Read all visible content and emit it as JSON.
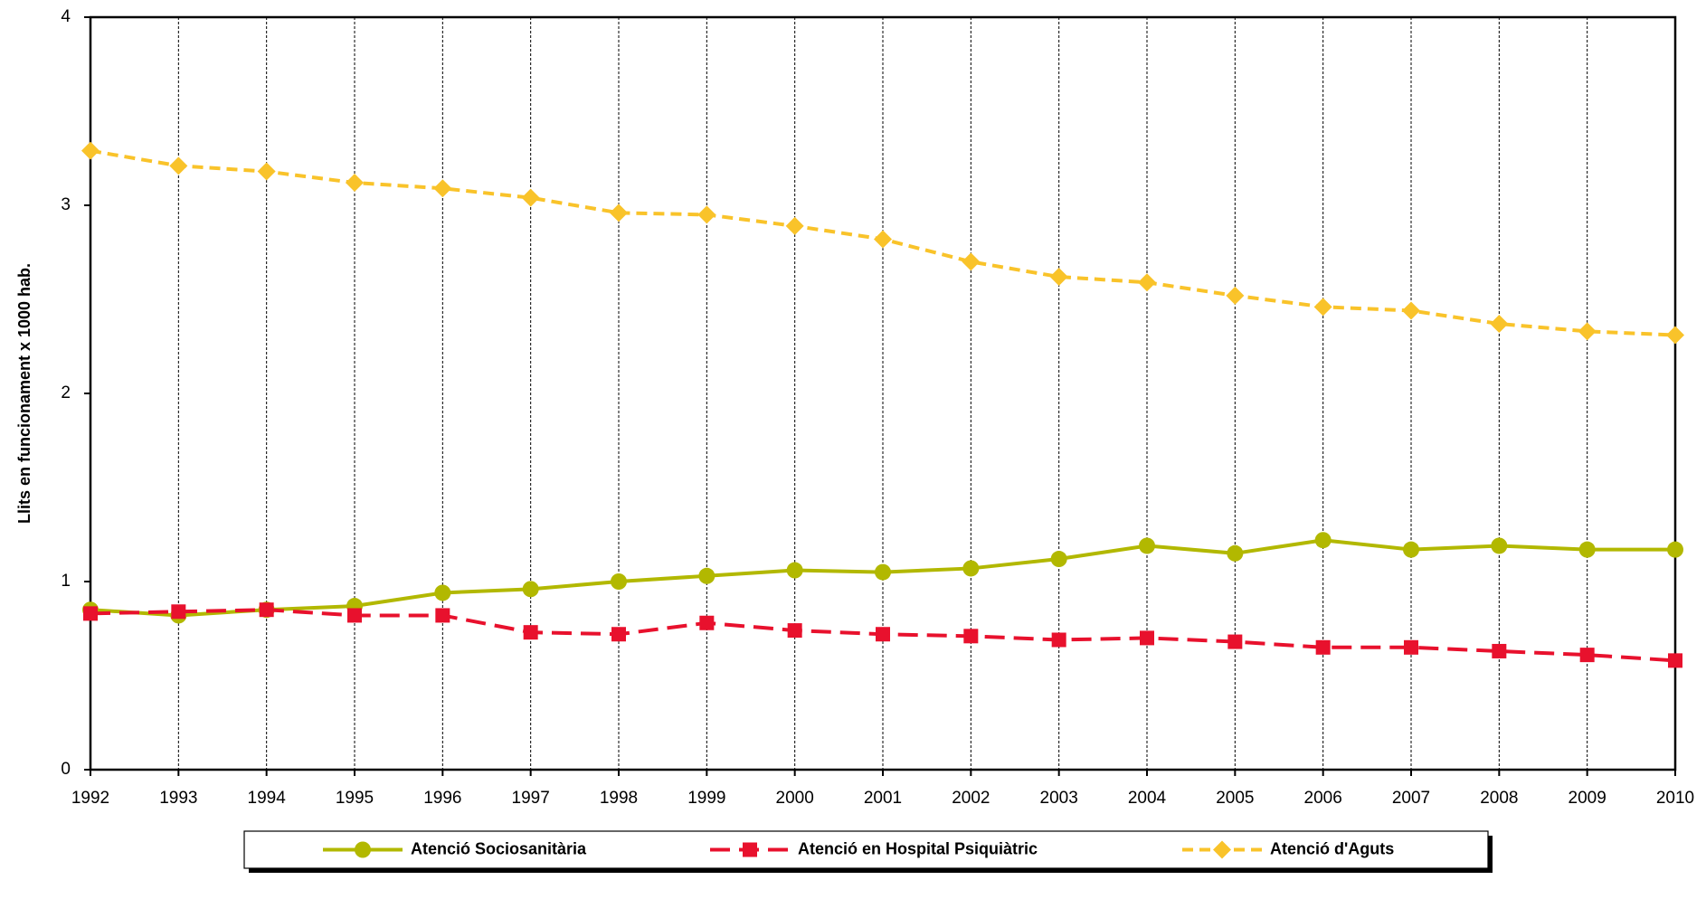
{
  "chart_data": {
    "type": "line",
    "y_label": "Llits en funcionament  x 1000 hab.",
    "x": [
      1992,
      1993,
      1994,
      1995,
      1996,
      1997,
      1998,
      1999,
      2000,
      2001,
      2002,
      2003,
      2004,
      2005,
      2006,
      2007,
      2008,
      2009,
      2010
    ],
    "xlim": [
      1992,
      2010
    ],
    "xticks": [
      1992,
      1993,
      1994,
      1995,
      1996,
      1997,
      1998,
      1999,
      2000,
      2001,
      2002,
      2003,
      2004,
      2005,
      2006,
      2007,
      2008,
      2009,
      2010
    ],
    "ylim": [
      0,
      4
    ],
    "yticks": [
      0,
      1,
      2,
      3,
      4
    ],
    "grid": true,
    "legend": "bottom",
    "series": [
      {
        "name": "Atenció Sociosanitària",
        "color": "#b2b800",
        "dash": "solid",
        "marker": "circle",
        "values": [
          0.85,
          0.82,
          0.85,
          0.87,
          0.94,
          0.96,
          1.0,
          1.03,
          1.06,
          1.05,
          1.07,
          1.12,
          1.19,
          1.15,
          1.22,
          1.17,
          1.19,
          1.17,
          1.17
        ]
      },
      {
        "name": "Atenció en Hospital  Psiquiàtric",
        "color": "#e8112d",
        "dash": "long",
        "marker": "square",
        "values": [
          0.83,
          0.84,
          0.85,
          0.82,
          0.82,
          0.73,
          0.72,
          0.78,
          0.74,
          0.72,
          0.71,
          0.69,
          0.7,
          0.68,
          0.65,
          0.65,
          0.63,
          0.61,
          0.58
        ]
      },
      {
        "name": "Atenció d'Aguts",
        "color": "#f9c32a",
        "dash": "short",
        "marker": "diamond",
        "values": [
          3.29,
          3.21,
          3.18,
          3.12,
          3.09,
          3.04,
          2.96,
          2.95,
          2.89,
          2.82,
          2.7,
          2.62,
          2.59,
          2.52,
          2.46,
          2.44,
          2.37,
          2.33,
          2.31
        ]
      }
    ]
  }
}
